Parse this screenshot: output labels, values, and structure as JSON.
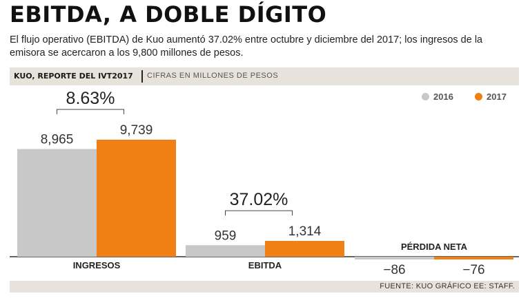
{
  "header": {
    "title": "EBITDA, A DOBLE DÍGITO",
    "subtitle": "El flujo operativo (EBITDA) de Kuo aumentó 37.02% entre octubre y diciembre del 2017; los ingresos de la emisora se acercaron a los 9,800 millones de pesos."
  },
  "band": {
    "title": "KUO, REPORTE DEL IVT2017",
    "note": "CIFRAS EN MILLONES DE PESOS"
  },
  "footer": {
    "source": "FUENTE: KUO GRÁFICO EE: STAFF."
  },
  "colors": {
    "s2016": "#c8c8c8",
    "s2017": "#f07f14",
    "axis": "#333333"
  },
  "chart_data": {
    "type": "bar",
    "categories": [
      "INGRESOS",
      "EBITDA",
      "PÉRDIDA NETA"
    ],
    "series": [
      {
        "name": "2016",
        "values": [
          8965,
          959,
          -86
        ],
        "labels": [
          "8,965",
          "959",
          "−86"
        ]
      },
      {
        "name": "2017",
        "values": [
          9739,
          1314,
          -76
        ],
        "labels": [
          "9,739",
          "1,314",
          "−76"
        ]
      }
    ],
    "annotations": [
      {
        "category": "INGRESOS",
        "text": "8.63%"
      },
      {
        "category": "EBITDA",
        "text": "37.02%"
      }
    ],
    "ylabel": "Cifras en millones de pesos",
    "legend_position": "top-right"
  }
}
